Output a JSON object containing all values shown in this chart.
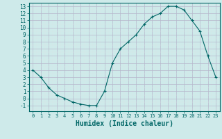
{
  "x": [
    0,
    1,
    2,
    3,
    4,
    5,
    6,
    7,
    8,
    9,
    10,
    11,
    12,
    13,
    14,
    15,
    16,
    17,
    18,
    19,
    20,
    21,
    22,
    23
  ],
  "y": [
    4.0,
    3.0,
    1.5,
    0.5,
    0.0,
    -0.5,
    -0.8,
    -1.0,
    -1.0,
    1.0,
    5.0,
    7.0,
    8.0,
    9.0,
    10.5,
    11.5,
    12.0,
    13.0,
    13.0,
    12.5,
    11.0,
    9.5,
    6.0,
    3.0
  ],
  "line_color": "#006666",
  "marker": "+",
  "bg_color": "#ceeaea",
  "grid_major_color": "#b8b8cc",
  "grid_minor_color": "#d8e8e8",
  "xlabel": "Humidex (Indice chaleur)",
  "xlabel_fontsize": 7,
  "tick_fontsize": 6,
  "xlim": [
    -0.5,
    23.5
  ],
  "ylim": [
    -1.8,
    13.5
  ],
  "yticks": [
    -1,
    0,
    1,
    2,
    3,
    4,
    5,
    6,
    7,
    8,
    9,
    10,
    11,
    12,
    13
  ],
  "xticks": [
    0,
    1,
    2,
    3,
    4,
    5,
    6,
    7,
    8,
    9,
    10,
    11,
    12,
    13,
    14,
    15,
    16,
    17,
    18,
    19,
    20,
    21,
    22,
    23
  ]
}
